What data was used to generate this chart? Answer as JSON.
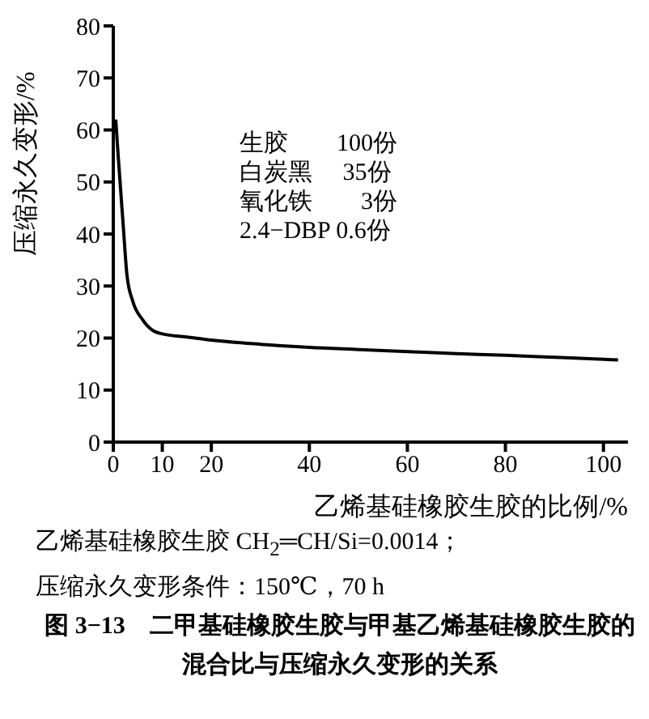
{
  "chart_data": {
    "type": "line",
    "title": "图 3−13　二甲基硅橡胶生胶与甲基乙烯基硅橡胶生胶的混合比与压缩永久变形的关系",
    "xlabel": "乙烯基硅橡胶生胶的比例/%",
    "ylabel": "压缩永久变形/%",
    "x": [
      0.5,
      1,
      2,
      2.8,
      4,
      6,
      8,
      10,
      15,
      20,
      30,
      40,
      50,
      60,
      70,
      80,
      90,
      100,
      103
    ],
    "series": [
      {
        "color": "#000000",
        "values": [
          62,
          55,
          42,
          32,
          27,
          23.5,
          21.5,
          20.8,
          20.2,
          19.6,
          18.8,
          18.2,
          17.8,
          17.4,
          17,
          16.7,
          16.3,
          15.9,
          15.8
        ]
      }
    ],
    "xlim": [
      0,
      105
    ],
    "xticks": [
      0,
      10,
      20,
      40,
      60,
      80,
      100
    ],
    "ylim": [
      0,
      80
    ],
    "yticks": [
      0,
      10,
      20,
      30,
      40,
      50,
      60,
      70,
      80
    ],
    "grid": false,
    "legend": false,
    "marker": "none",
    "line_style": "solid",
    "annotations": [
      "生胶　　100份",
      "白炭黑　 35份",
      "氧化铁　　3份",
      "2.4−DBP 0.6份",
      "乙烯基硅橡胶生胶 CH$_{2}$═CH/Si=0.0014；",
      "压缩永久变形条件：150℃，70 h"
    ]
  }
}
